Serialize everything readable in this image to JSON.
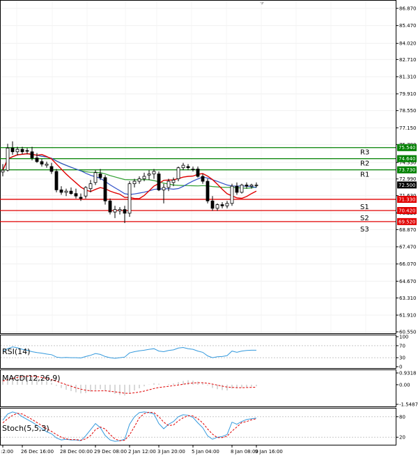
{
  "chart_data": {
    "type": "candlestick",
    "price_axis": {
      "ticks": [
        "86.870",
        "85.470",
        "84.020",
        "82.710",
        "81.310",
        "79.910",
        "78.550",
        "77.150",
        "75.790",
        "74.330",
        "72.990",
        "71.630",
        "70.220",
        "68.870",
        "67.470",
        "66.070",
        "64.670",
        "63.310",
        "61.910",
        "60.550"
      ],
      "range": [
        60.55,
        86.87
      ]
    },
    "x_labels": [
      ":2:00",
      "26 Dec 16:00",
      "28 Dec 00:00",
      "29 Dec 08:00",
      "2 Jan 12:00",
      "3 Jan 20:00",
      "5 Jan 04:00",
      "8 Jan 08:00",
      "9 Jan 16:00"
    ],
    "levels": [
      {
        "name": "R3",
        "value": 75.54,
        "tag": "75.540",
        "kind": "resistance",
        "color": "#008000"
      },
      {
        "name": "R2",
        "value": 74.64,
        "tag": "74.640",
        "kind": "resistance",
        "color": "#008000"
      },
      {
        "name": "R1",
        "value": 73.73,
        "tag": "73.730",
        "kind": "resistance",
        "color": "#008000"
      },
      {
        "name": "S1",
        "value": 71.33,
        "tag": "71.330",
        "kind": "support",
        "color": "#e00000"
      },
      {
        "name": "S2",
        "value": 70.42,
        "tag": "70.420",
        "kind": "support",
        "color": "#e00000"
      },
      {
        "name": "S3",
        "value": 69.52,
        "tag": "69.520",
        "kind": "support",
        "color": "#e00000"
      }
    ],
    "current_price": "72.500",
    "candles": [
      [
        73.55,
        74.2,
        73.2,
        73.7
      ],
      [
        73.7,
        75.85,
        73.6,
        75.5
      ],
      [
        75.5,
        76.05,
        74.95,
        75.2
      ],
      [
        75.2,
        75.6,
        74.9,
        75.4
      ],
      [
        75.4,
        75.6,
        75.0,
        75.2
      ],
      [
        75.3,
        75.5,
        75.0,
        75.25
      ],
      [
        75.2,
        75.6,
        74.5,
        74.7
      ],
      [
        74.7,
        75.1,
        74.3,
        74.4
      ],
      [
        74.4,
        74.6,
        74.0,
        74.2
      ],
      [
        74.1,
        74.4,
        73.9,
        74.2
      ],
      [
        74.0,
        74.3,
        73.4,
        73.6
      ],
      [
        73.6,
        73.8,
        71.9,
        72.1
      ],
      [
        72.1,
        72.4,
        71.7,
        71.9
      ],
      [
        71.9,
        72.2,
        71.6,
        72.0
      ],
      [
        72.0,
        72.3,
        71.7,
        71.8
      ],
      [
        71.8,
        72.2,
        71.4,
        71.6
      ],
      [
        71.5,
        71.8,
        71.2,
        71.4
      ],
      [
        71.6,
        72.4,
        71.4,
        72.3
      ],
      [
        72.2,
        72.9,
        71.9,
        72.6
      ],
      [
        72.7,
        73.7,
        72.5,
        73.5
      ],
      [
        73.4,
        73.8,
        72.9,
        73.1
      ],
      [
        73.1,
        73.3,
        70.9,
        71.2
      ],
      [
        71.2,
        71.4,
        70.1,
        70.3
      ],
      [
        70.3,
        70.8,
        69.8,
        70.5
      ],
      [
        70.4,
        70.7,
        70.1,
        70.5
      ],
      [
        70.5,
        70.8,
        69.4,
        70.2
      ],
      [
        70.2,
        72.8,
        69.9,
        72.6
      ],
      [
        72.6,
        73.0,
        72.3,
        72.8
      ],
      [
        72.8,
        73.2,
        72.6,
        73.0
      ],
      [
        73.0,
        73.5,
        72.8,
        73.2
      ],
      [
        73.3,
        73.7,
        72.9,
        73.4
      ],
      [
        73.4,
        73.8,
        73.0,
        73.6
      ],
      [
        73.4,
        73.6,
        72.0,
        72.1
      ],
      [
        72.1,
        72.6,
        71.0,
        72.3
      ],
      [
        72.3,
        73.0,
        72.0,
        72.8
      ],
      [
        72.7,
        73.1,
        72.4,
        72.9
      ],
      [
        73.0,
        74.0,
        72.8,
        73.9
      ],
      [
        73.9,
        74.3,
        73.7,
        74.1
      ],
      [
        74.0,
        74.2,
        73.7,
        73.9
      ],
      [
        73.8,
        74.0,
        73.6,
        73.8
      ],
      [
        73.8,
        74.0,
        73.1,
        73.2
      ],
      [
        73.2,
        73.4,
        72.6,
        72.8
      ],
      [
        72.8,
        73.0,
        71.0,
        71.2
      ],
      [
        71.2,
        71.6,
        70.4,
        70.6
      ],
      [
        70.6,
        71.0,
        70.4,
        70.9
      ],
      [
        70.9,
        71.1,
        70.6,
        70.8
      ],
      [
        70.8,
        71.2,
        70.6,
        71.0
      ],
      [
        71.0,
        72.6,
        70.8,
        72.4
      ],
      [
        72.4,
        72.7,
        71.7,
        71.9
      ],
      [
        71.9,
        72.6,
        71.8,
        72.5
      ],
      [
        72.5,
        72.7,
        72.2,
        72.4
      ],
      [
        72.4,
        72.6,
        72.2,
        72.5
      ],
      [
        72.5,
        72.7,
        72.3,
        72.5
      ]
    ],
    "ma_fast_name": "",
    "ma_slow_name": "",
    "rsi": {
      "label": "RSI(14)",
      "ticks": [
        "100",
        "70",
        "30",
        "0"
      ],
      "values": [
        52,
        60,
        66,
        63,
        58,
        55,
        50,
        47,
        45,
        42,
        40,
        32,
        30,
        31,
        30,
        30,
        29,
        34,
        38,
        44,
        41,
        34,
        30,
        28,
        30,
        32,
        46,
        50,
        53,
        55,
        58,
        60,
        52,
        50,
        54,
        56,
        62,
        64,
        60,
        58,
        52,
        48,
        36,
        30,
        33,
        34,
        37,
        52,
        48,
        52,
        54,
        55,
        55
      ]
    },
    "macd": {
      "label": "MACD(12,26,9)",
      "ticks": [
        "0.9318",
        "0.00",
        "-1.5487"
      ],
      "histogram": [
        0.45,
        0.55,
        0.7,
        0.72,
        0.75,
        0.72,
        0.65,
        0.55,
        0.4,
        0.28,
        0.15,
        -0.08,
        -0.25,
        -0.4,
        -0.5,
        -0.6,
        -0.68,
        -0.65,
        -0.55,
        -0.42,
        -0.35,
        -0.45,
        -0.6,
        -0.72,
        -0.8,
        -0.85,
        -0.65,
        -0.45,
        -0.28,
        -0.12,
        0.02,
        0.12,
        0.08,
        0.0,
        0.05,
        0.1,
        0.2,
        0.3,
        0.35,
        0.32,
        0.25,
        0.15,
        -0.05,
        -0.25,
        -0.35,
        -0.42,
        -0.45,
        -0.3,
        -0.28,
        -0.22,
        -0.18,
        -0.15,
        -0.12
      ],
      "signal": [
        0.3,
        0.4,
        0.5,
        0.58,
        0.64,
        0.67,
        0.67,
        0.64,
        0.58,
        0.5,
        0.4,
        0.28,
        0.14,
        0.01,
        -0.12,
        -0.24,
        -0.35,
        -0.43,
        -0.48,
        -0.49,
        -0.48,
        -0.48,
        -0.51,
        -0.56,
        -0.61,
        -0.67,
        -0.68,
        -0.64,
        -0.58,
        -0.5,
        -0.4,
        -0.3,
        -0.22,
        -0.17,
        -0.12,
        -0.07,
        -0.02,
        0.04,
        0.1,
        0.14,
        0.16,
        0.16,
        0.12,
        0.05,
        -0.03,
        -0.11,
        -0.18,
        -0.21,
        -0.23,
        -0.23,
        -0.22,
        -0.21,
        -0.19
      ]
    },
    "stoch": {
      "label": "Stoch(5,5,3)",
      "ticks": [
        "80",
        "20"
      ],
      "k": [
        70,
        88,
        94,
        90,
        80,
        72,
        64,
        55,
        45,
        36,
        30,
        18,
        12,
        14,
        12,
        12,
        10,
        24,
        42,
        60,
        48,
        25,
        12,
        8,
        10,
        14,
        58,
        80,
        92,
        94,
        92,
        88,
        60,
        45,
        58,
        66,
        80,
        86,
        84,
        78,
        62,
        48,
        24,
        14,
        20,
        22,
        28,
        64,
        58,
        66,
        72,
        74,
        76
      ],
      "d": [
        62,
        74,
        84,
        90,
        88,
        80,
        72,
        63,
        54,
        45,
        37,
        28,
        20,
        15,
        13,
        13,
        11,
        15,
        25,
        42,
        50,
        44,
        28,
        15,
        10,
        11,
        27,
        51,
        77,
        89,
        93,
        92,
        80,
        64,
        54,
        56,
        68,
        77,
        83,
        82,
        74,
        62,
        44,
        29,
        19,
        19,
        23,
        38,
        50,
        63,
        66,
        71,
        74
      ]
    }
  }
}
